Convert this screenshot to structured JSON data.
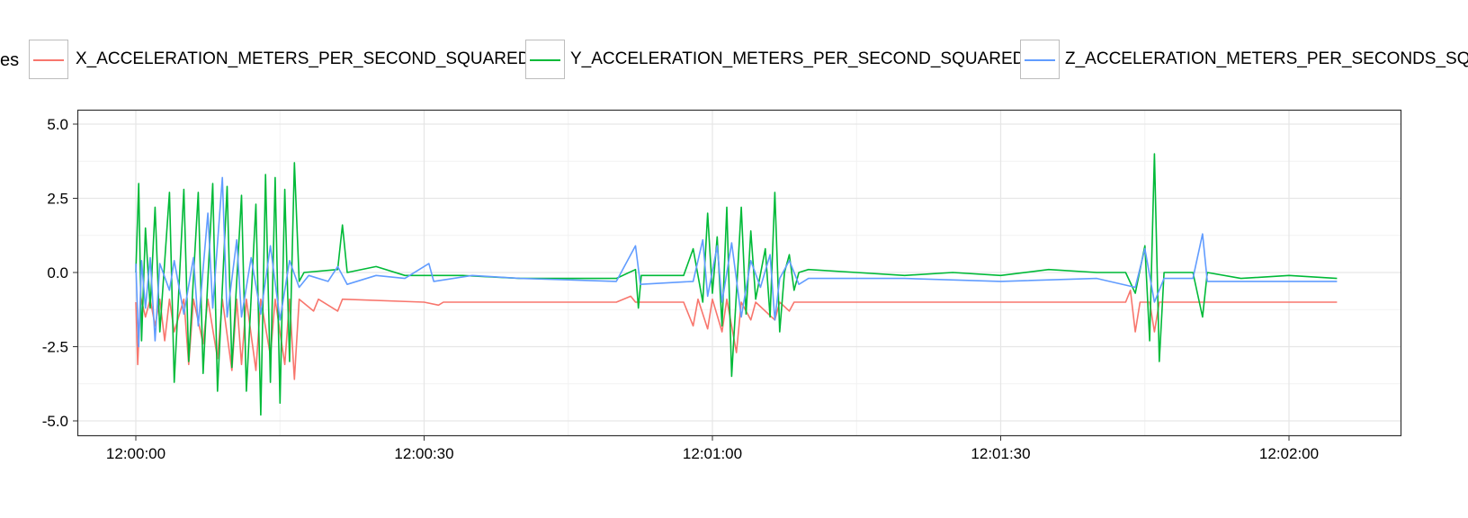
{
  "legend": {
    "title": "es",
    "entries": [
      {
        "label": "X_ACCELERATION_METERS_PER_SECOND_SQUARED",
        "color": "#f8766d"
      },
      {
        "label": "Y_ACCELERATION_METERS_PER_SECOND_SQUARED",
        "color": "#00ba38"
      },
      {
        "label": "Z_ACCELERATION_METERS_PER_SECONDS_SQUARED",
        "color": "#619cff"
      }
    ]
  },
  "chart_data": {
    "type": "line",
    "title": "",
    "xlabel": "",
    "ylabel": "",
    "grid": true,
    "legend_position": "top",
    "xlim": [
      "12:00:00",
      "12:02:05"
    ],
    "ylim": [
      -5.5,
      5.0
    ],
    "x_ticks": [
      "12:00:00",
      "12:00:30",
      "12:01:00",
      "12:01:30",
      "12:02:00"
    ],
    "y_ticks": [
      "5.0",
      "2.5",
      "0.0",
      "-2.5",
      "-5.0"
    ],
    "series": [
      {
        "name": "X_ACCELERATION_METERS_PER_SECOND_SQUARED",
        "color": "#f8766d",
        "points": [
          [
            "12:00:00.0",
            -1.0
          ],
          [
            "12:00:00.2",
            -3.1
          ],
          [
            "12:00:00.5",
            -0.8
          ],
          [
            "12:00:01.0",
            -1.5
          ],
          [
            "12:00:01.5",
            -0.9
          ],
          [
            "12:00:02.0",
            -1.8
          ],
          [
            "12:00:02.5",
            -0.9
          ],
          [
            "12:00:03.0",
            -2.3
          ],
          [
            "12:00:03.5",
            -0.9
          ],
          [
            "12:00:04.0",
            -2.0
          ],
          [
            "12:00:05.0",
            -0.9
          ],
          [
            "12:00:05.5",
            -3.1
          ],
          [
            "12:00:06.0",
            -0.9
          ],
          [
            "12:00:07.0",
            -2.4
          ],
          [
            "12:00:07.5",
            -0.9
          ],
          [
            "12:00:08.5",
            -2.9
          ],
          [
            "12:00:09.0",
            -0.9
          ],
          [
            "12:00:10.0",
            -3.3
          ],
          [
            "12:00:10.5",
            -0.9
          ],
          [
            "12:00:11.0",
            -3.1
          ],
          [
            "12:00:11.5",
            -0.9
          ],
          [
            "12:00:12.5",
            -3.3
          ],
          [
            "12:00:13.0",
            -0.9
          ],
          [
            "12:00:14.0",
            -2.8
          ],
          [
            "12:00:14.5",
            -0.9
          ],
          [
            "12:00:15.5",
            -3.1
          ],
          [
            "12:00:16.0",
            -0.9
          ],
          [
            "12:00:16.5",
            -3.6
          ],
          [
            "12:00:17.0",
            -0.9
          ],
          [
            "12:00:18.5",
            -1.3
          ],
          [
            "12:00:19.0",
            -0.9
          ],
          [
            "12:00:21.0",
            -1.3
          ],
          [
            "12:00:21.5",
            -0.9
          ],
          [
            "12:00:30.0",
            -1.0
          ],
          [
            "12:00:31.5",
            -1.1
          ],
          [
            "12:00:32.0",
            -1.0
          ],
          [
            "12:00:50.0",
            -1.0
          ],
          [
            "12:00:51.5",
            -0.8
          ],
          [
            "12:00:52.0",
            -1.0
          ],
          [
            "12:00:57.0",
            -1.0
          ],
          [
            "12:00:58.0",
            -1.8
          ],
          [
            "12:00:58.5",
            -0.9
          ],
          [
            "12:00:59.5",
            -1.9
          ],
          [
            "12:01:00.0",
            -0.9
          ],
          [
            "12:01:01.0",
            -2.0
          ],
          [
            "12:01:01.5",
            -0.9
          ],
          [
            "12:01:02.5",
            -2.7
          ],
          [
            "12:01:03.0",
            -1.0
          ],
          [
            "12:01:04.0",
            -1.6
          ],
          [
            "12:01:04.5",
            -1.0
          ],
          [
            "12:01:06.5",
            -1.6
          ],
          [
            "12:01:07.0",
            -1.0
          ],
          [
            "12:01:08.0",
            -1.3
          ],
          [
            "12:01:08.5",
            -1.0
          ],
          [
            "12:01:30.0",
            -1.0
          ],
          [
            "12:01:43.0",
            -1.0
          ],
          [
            "12:01:43.5",
            -0.6
          ],
          [
            "12:01:44.0",
            -2.0
          ],
          [
            "12:01:44.5",
            -1.0
          ],
          [
            "12:01:45.5",
            -1.0
          ],
          [
            "12:01:46.0",
            -2.0
          ],
          [
            "12:01:46.5",
            -1.0
          ],
          [
            "12:02:05.0",
            -1.0
          ]
        ]
      },
      {
        "name": "Y_ACCELERATION_METERS_PER_SECOND_SQUARED",
        "color": "#00ba38",
        "points": [
          [
            "12:00:00.0",
            0.0
          ],
          [
            "12:00:00.3",
            3.0
          ],
          [
            "12:00:00.6",
            -2.3
          ],
          [
            "12:00:01.0",
            1.5
          ],
          [
            "12:00:01.5",
            -1.2
          ],
          [
            "12:00:02.0",
            2.2
          ],
          [
            "12:00:02.5",
            -2.0
          ],
          [
            "12:00:03.5",
            2.7
          ],
          [
            "12:00:04.0",
            -3.7
          ],
          [
            "12:00:05.0",
            2.8
          ],
          [
            "12:00:05.5",
            -3.0
          ],
          [
            "12:00:06.5",
            2.7
          ],
          [
            "12:00:07.0",
            -3.4
          ],
          [
            "12:00:08.0",
            3.0
          ],
          [
            "12:00:08.5",
            -4.0
          ],
          [
            "12:00:09.5",
            2.9
          ],
          [
            "12:00:10.0",
            -3.2
          ],
          [
            "12:00:11.0",
            2.6
          ],
          [
            "12:00:11.5",
            -4.0
          ],
          [
            "12:00:12.5",
            2.3
          ],
          [
            "12:00:13.0",
            -4.8
          ],
          [
            "12:00:13.5",
            3.3
          ],
          [
            "12:00:14.0",
            -3.7
          ],
          [
            "12:00:14.5",
            3.2
          ],
          [
            "12:00:15.0",
            -4.4
          ],
          [
            "12:00:15.5",
            2.8
          ],
          [
            "12:00:16.0",
            -3.0
          ],
          [
            "12:00:16.5",
            3.7
          ],
          [
            "12:00:17.0",
            -0.3
          ],
          [
            "12:00:17.5",
            0.0
          ],
          [
            "12:00:21.0",
            0.1
          ],
          [
            "12:00:21.5",
            1.6
          ],
          [
            "12:00:22.0",
            0.0
          ],
          [
            "12:00:25.0",
            0.2
          ],
          [
            "12:00:28.0",
            -0.1
          ],
          [
            "12:00:31.0",
            -0.1
          ],
          [
            "12:00:34.0",
            -0.1
          ],
          [
            "12:00:40.0",
            -0.2
          ],
          [
            "12:00:50.0",
            -0.2
          ],
          [
            "12:00:52.0",
            0.1
          ],
          [
            "12:00:52.3",
            -1.2
          ],
          [
            "12:00:52.6",
            -0.1
          ],
          [
            "12:00:57.0",
            -0.1
          ],
          [
            "12:00:58.0",
            0.8
          ],
          [
            "12:00:59.0",
            -1.0
          ],
          [
            "12:00:59.5",
            2.0
          ],
          [
            "12:01:00.0",
            -0.7
          ],
          [
            "12:01:00.5",
            1.2
          ],
          [
            "12:01:01.0",
            -1.8
          ],
          [
            "12:01:01.5",
            2.2
          ],
          [
            "12:01:02.0",
            -3.5
          ],
          [
            "12:01:03.0",
            2.2
          ],
          [
            "12:01:03.5",
            -1.4
          ],
          [
            "12:01:04.0",
            1.4
          ],
          [
            "12:01:04.5",
            -0.9
          ],
          [
            "12:01:05.5",
            0.8
          ],
          [
            "12:01:06.0",
            -1.5
          ],
          [
            "12:01:06.5",
            2.7
          ],
          [
            "12:01:07.0",
            -2.0
          ],
          [
            "12:01:07.5",
            0.0
          ],
          [
            "12:01:08.0",
            0.6
          ],
          [
            "12:01:08.5",
            -0.6
          ],
          [
            "12:01:09.0",
            0.0
          ],
          [
            "12:01:10.0",
            0.1
          ],
          [
            "12:01:15.0",
            0.0
          ],
          [
            "12:01:20.0",
            -0.1
          ],
          [
            "12:01:25.0",
            0.0
          ],
          [
            "12:01:30.0",
            -0.1
          ],
          [
            "12:01:35.0",
            0.1
          ],
          [
            "12:01:40.0",
            0.0
          ],
          [
            "12:01:43.0",
            0.0
          ],
          [
            "12:01:44.0",
            -0.7
          ],
          [
            "12:01:45.0",
            0.9
          ],
          [
            "12:01:45.5",
            -2.3
          ],
          [
            "12:01:46.0",
            4.0
          ],
          [
            "12:01:46.5",
            -3.0
          ],
          [
            "12:01:47.0",
            0.0
          ],
          [
            "12:01:50.0",
            0.0
          ],
          [
            "12:01:51.0",
            -1.5
          ],
          [
            "12:01:51.5",
            0.0
          ],
          [
            "12:01:55.0",
            -0.2
          ],
          [
            "12:02:00.0",
            -0.1
          ],
          [
            "12:02:05.0",
            -0.2
          ]
        ]
      },
      {
        "name": "Z_ACCELERATION_METERS_PER_SECONDS_SQUARED",
        "color": "#619cff",
        "points": [
          [
            "12:00:00.0",
            0.3
          ],
          [
            "12:00:00.3",
            -2.5
          ],
          [
            "12:00:00.6",
            0.4
          ],
          [
            "12:00:01.0",
            -1.2
          ],
          [
            "12:00:01.5",
            0.5
          ],
          [
            "12:00:02.0",
            -2.3
          ],
          [
            "12:00:02.5",
            0.3
          ],
          [
            "12:00:03.5",
            -0.6
          ],
          [
            "12:00:04.0",
            0.4
          ],
          [
            "12:00:05.0",
            -1.4
          ],
          [
            "12:00:06.0",
            0.5
          ],
          [
            "12:00:06.5",
            -1.8
          ],
          [
            "12:00:07.5",
            2.0
          ],
          [
            "12:00:08.0",
            -1.2
          ],
          [
            "12:00:09.0",
            3.2
          ],
          [
            "12:00:09.5",
            -1.5
          ],
          [
            "12:00:10.5",
            1.1
          ],
          [
            "12:00:11.0",
            -1.5
          ],
          [
            "12:00:12.0",
            0.5
          ],
          [
            "12:00:13.0",
            -1.4
          ],
          [
            "12:00:14.0",
            0.9
          ],
          [
            "12:00:15.0",
            -1.6
          ],
          [
            "12:00:16.0",
            0.4
          ],
          [
            "12:00:17.0",
            -0.5
          ],
          [
            "12:00:18.0",
            -0.1
          ],
          [
            "12:00:20.0",
            -0.3
          ],
          [
            "12:00:21.0",
            0.2
          ],
          [
            "12:00:22.0",
            -0.4
          ],
          [
            "12:00:25.0",
            -0.1
          ],
          [
            "12:00:28.0",
            -0.2
          ],
          [
            "12:00:30.5",
            0.3
          ],
          [
            "12:00:31.0",
            -0.3
          ],
          [
            "12:00:35.0",
            -0.1
          ],
          [
            "12:00:40.0",
            -0.2
          ],
          [
            "12:00:50.0",
            -0.3
          ],
          [
            "12:00:52.0",
            0.9
          ],
          [
            "12:00:52.5",
            -0.4
          ],
          [
            "12:00:58.0",
            -0.3
          ],
          [
            "12:00:59.0",
            1.1
          ],
          [
            "12:00:59.5",
            -0.8
          ],
          [
            "12:01:00.5",
            0.9
          ],
          [
            "12:01:01.0",
            -1.0
          ],
          [
            "12:01:02.0",
            1.0
          ],
          [
            "12:01:03.0",
            -1.5
          ],
          [
            "12:01:04.0",
            0.4
          ],
          [
            "12:01:05.0",
            -0.5
          ],
          [
            "12:01:06.0",
            0.6
          ],
          [
            "12:01:06.5",
            -1.6
          ],
          [
            "12:01:07.0",
            -0.2
          ],
          [
            "12:01:08.0",
            0.4
          ],
          [
            "12:01:09.0",
            -0.4
          ],
          [
            "12:01:10.0",
            -0.2
          ],
          [
            "12:01:20.0",
            -0.2
          ],
          [
            "12:01:30.0",
            -0.3
          ],
          [
            "12:01:40.0",
            -0.2
          ],
          [
            "12:01:44.0",
            -0.5
          ],
          [
            "12:01:45.0",
            0.8
          ],
          [
            "12:01:46.0",
            -1.0
          ],
          [
            "12:01:47.0",
            -0.2
          ],
          [
            "12:01:50.0",
            -0.2
          ],
          [
            "12:01:51.0",
            1.3
          ],
          [
            "12:01:51.5",
            -0.3
          ],
          [
            "12:02:00.0",
            -0.3
          ],
          [
            "12:02:05.0",
            -0.3
          ]
        ]
      }
    ]
  }
}
